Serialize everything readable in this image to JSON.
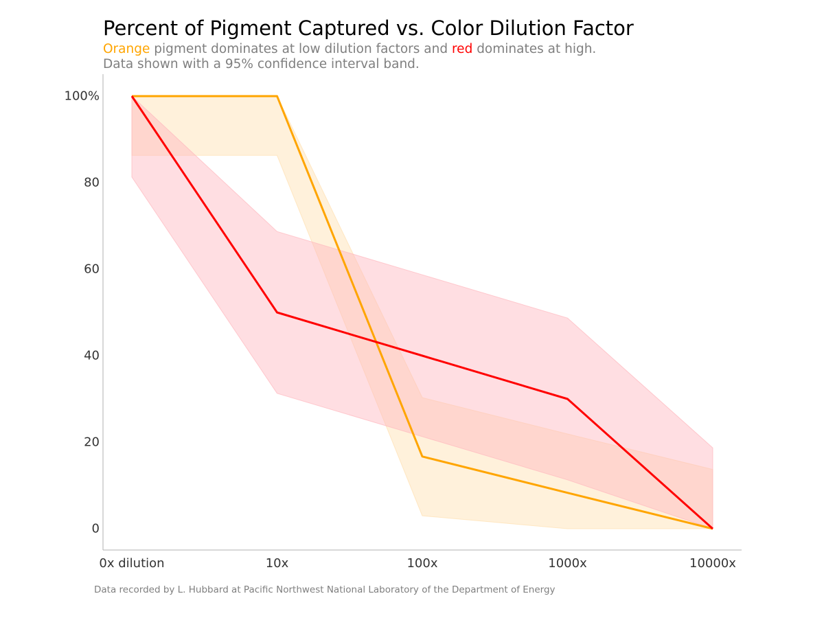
{
  "title": "Percent of Pigment Captured vs. Color Dilution Factor",
  "subtitle": {
    "orange_word": "Orange",
    "part1": " pigment dominates at low dilution factors and ",
    "red_word": "red",
    "part2": " dominates at high.",
    "line2": "Data shown with a 95% confidence interval band."
  },
  "footnote": "Data recorded by L. Hubbard at Pacific Northwest National Laboratory of the Department of Energy",
  "colors": {
    "orange": "#ffa500",
    "red": "#ff0000",
    "orange_band": "#ffe0b0",
    "red_band": "#ffb6be",
    "text_gray": "#7f7f7f",
    "tick_text": "#333333",
    "axis": "#b0b0b0"
  },
  "chart_data": {
    "type": "line",
    "x": [
      "0x dilution",
      "10x",
      "100x",
      "1000x",
      "10000x"
    ],
    "ylim": [
      -5,
      105
    ],
    "yticks": [
      0,
      20,
      40,
      60,
      80,
      100
    ],
    "ytick_labels": [
      "0",
      "20",
      "40",
      "60",
      "80",
      "100%"
    ],
    "grid": false,
    "series": [
      {
        "name": "Orange",
        "color": "#ffa500",
        "values": [
          100,
          100,
          16.7,
          8.3,
          0
        ],
        "ci_lower": [
          86.3,
          86.3,
          3,
          0,
          0
        ],
        "ci_upper": [
          100,
          100,
          30.3,
          21.9,
          13.7
        ]
      },
      {
        "name": "red",
        "color": "#ff0000",
        "values": [
          100,
          50,
          40,
          30,
          0
        ],
        "ci_lower": [
          81.3,
          31.3,
          21.3,
          11.3,
          0
        ],
        "ci_upper": [
          100,
          68.7,
          58.7,
          48.7,
          18.7
        ]
      }
    ]
  }
}
